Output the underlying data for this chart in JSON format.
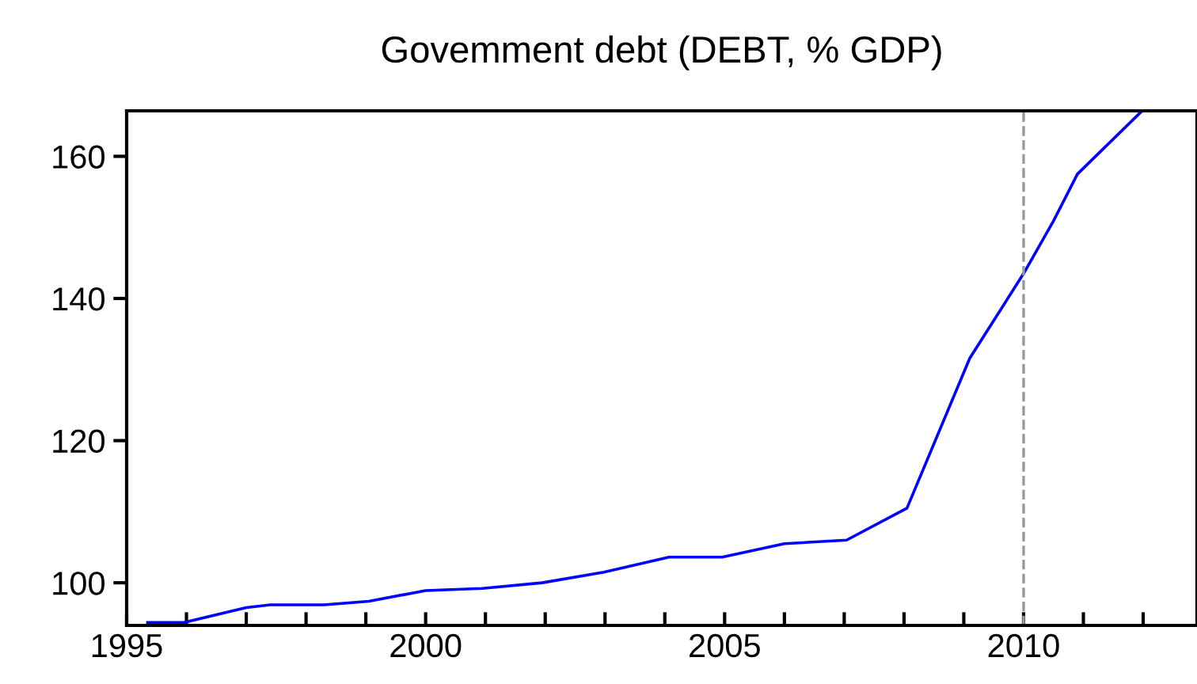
{
  "chart_data": {
    "type": "line",
    "title": "Govemment debt (DEBT, % GDP)",
    "x": [
      1995.35,
      1995.95,
      1997.0,
      1997.4,
      1998.3,
      1999.05,
      2000.0,
      2000.95,
      2001.95,
      2002.98,
      2004.07,
      2004.96,
      2006.0,
      2007.04,
      2008.05,
      2009.1,
      2010.0,
      2010.5,
      2010.9,
      2011.97
    ],
    "series": [
      {
        "color": "#0000ff",
        "values": [
          94.4,
          94.4,
          96.5,
          96.9,
          96.9,
          97.4,
          98.9,
          99.2,
          100.0,
          101.5,
          103.6,
          103.6,
          105.5,
          106.0,
          110.5,
          131.6,
          143.5,
          150.9,
          157.5,
          166.3
        ]
      }
    ],
    "xlim": [
      1995,
      2012.9
    ],
    "ylim": [
      94.0,
      166.4
    ],
    "xticks": [
      1995,
      {
        "value": 1996,
        "label": null
      },
      {
        "value": 1997,
        "label": null
      },
      {
        "value": 1998,
        "label": null
      },
      {
        "value": 1999,
        "label": null
      },
      2000,
      {
        "value": 2001,
        "label": null
      },
      {
        "value": 2002,
        "label": null
      },
      {
        "value": 2003,
        "label": null
      },
      {
        "value": 2004,
        "label": null
      },
      2005,
      {
        "value": 2006,
        "label": null
      },
      {
        "value": 2007,
        "label": null
      },
      {
        "value": 2008,
        "label": null
      },
      {
        "value": 2009,
        "label": null
      },
      2010,
      {
        "value": 2011,
        "label": null
      },
      {
        "value": 2012,
        "label": null
      }
    ],
    "yticks": [
      100,
      120,
      140,
      160
    ],
    "ref_lines": [
      {
        "axis": "x",
        "value": 2010,
        "color": "#999999",
        "line_style": "dashed"
      }
    ],
    "grid": false,
    "legend": false,
    "marker": "none",
    "line_style": "solid"
  }
}
